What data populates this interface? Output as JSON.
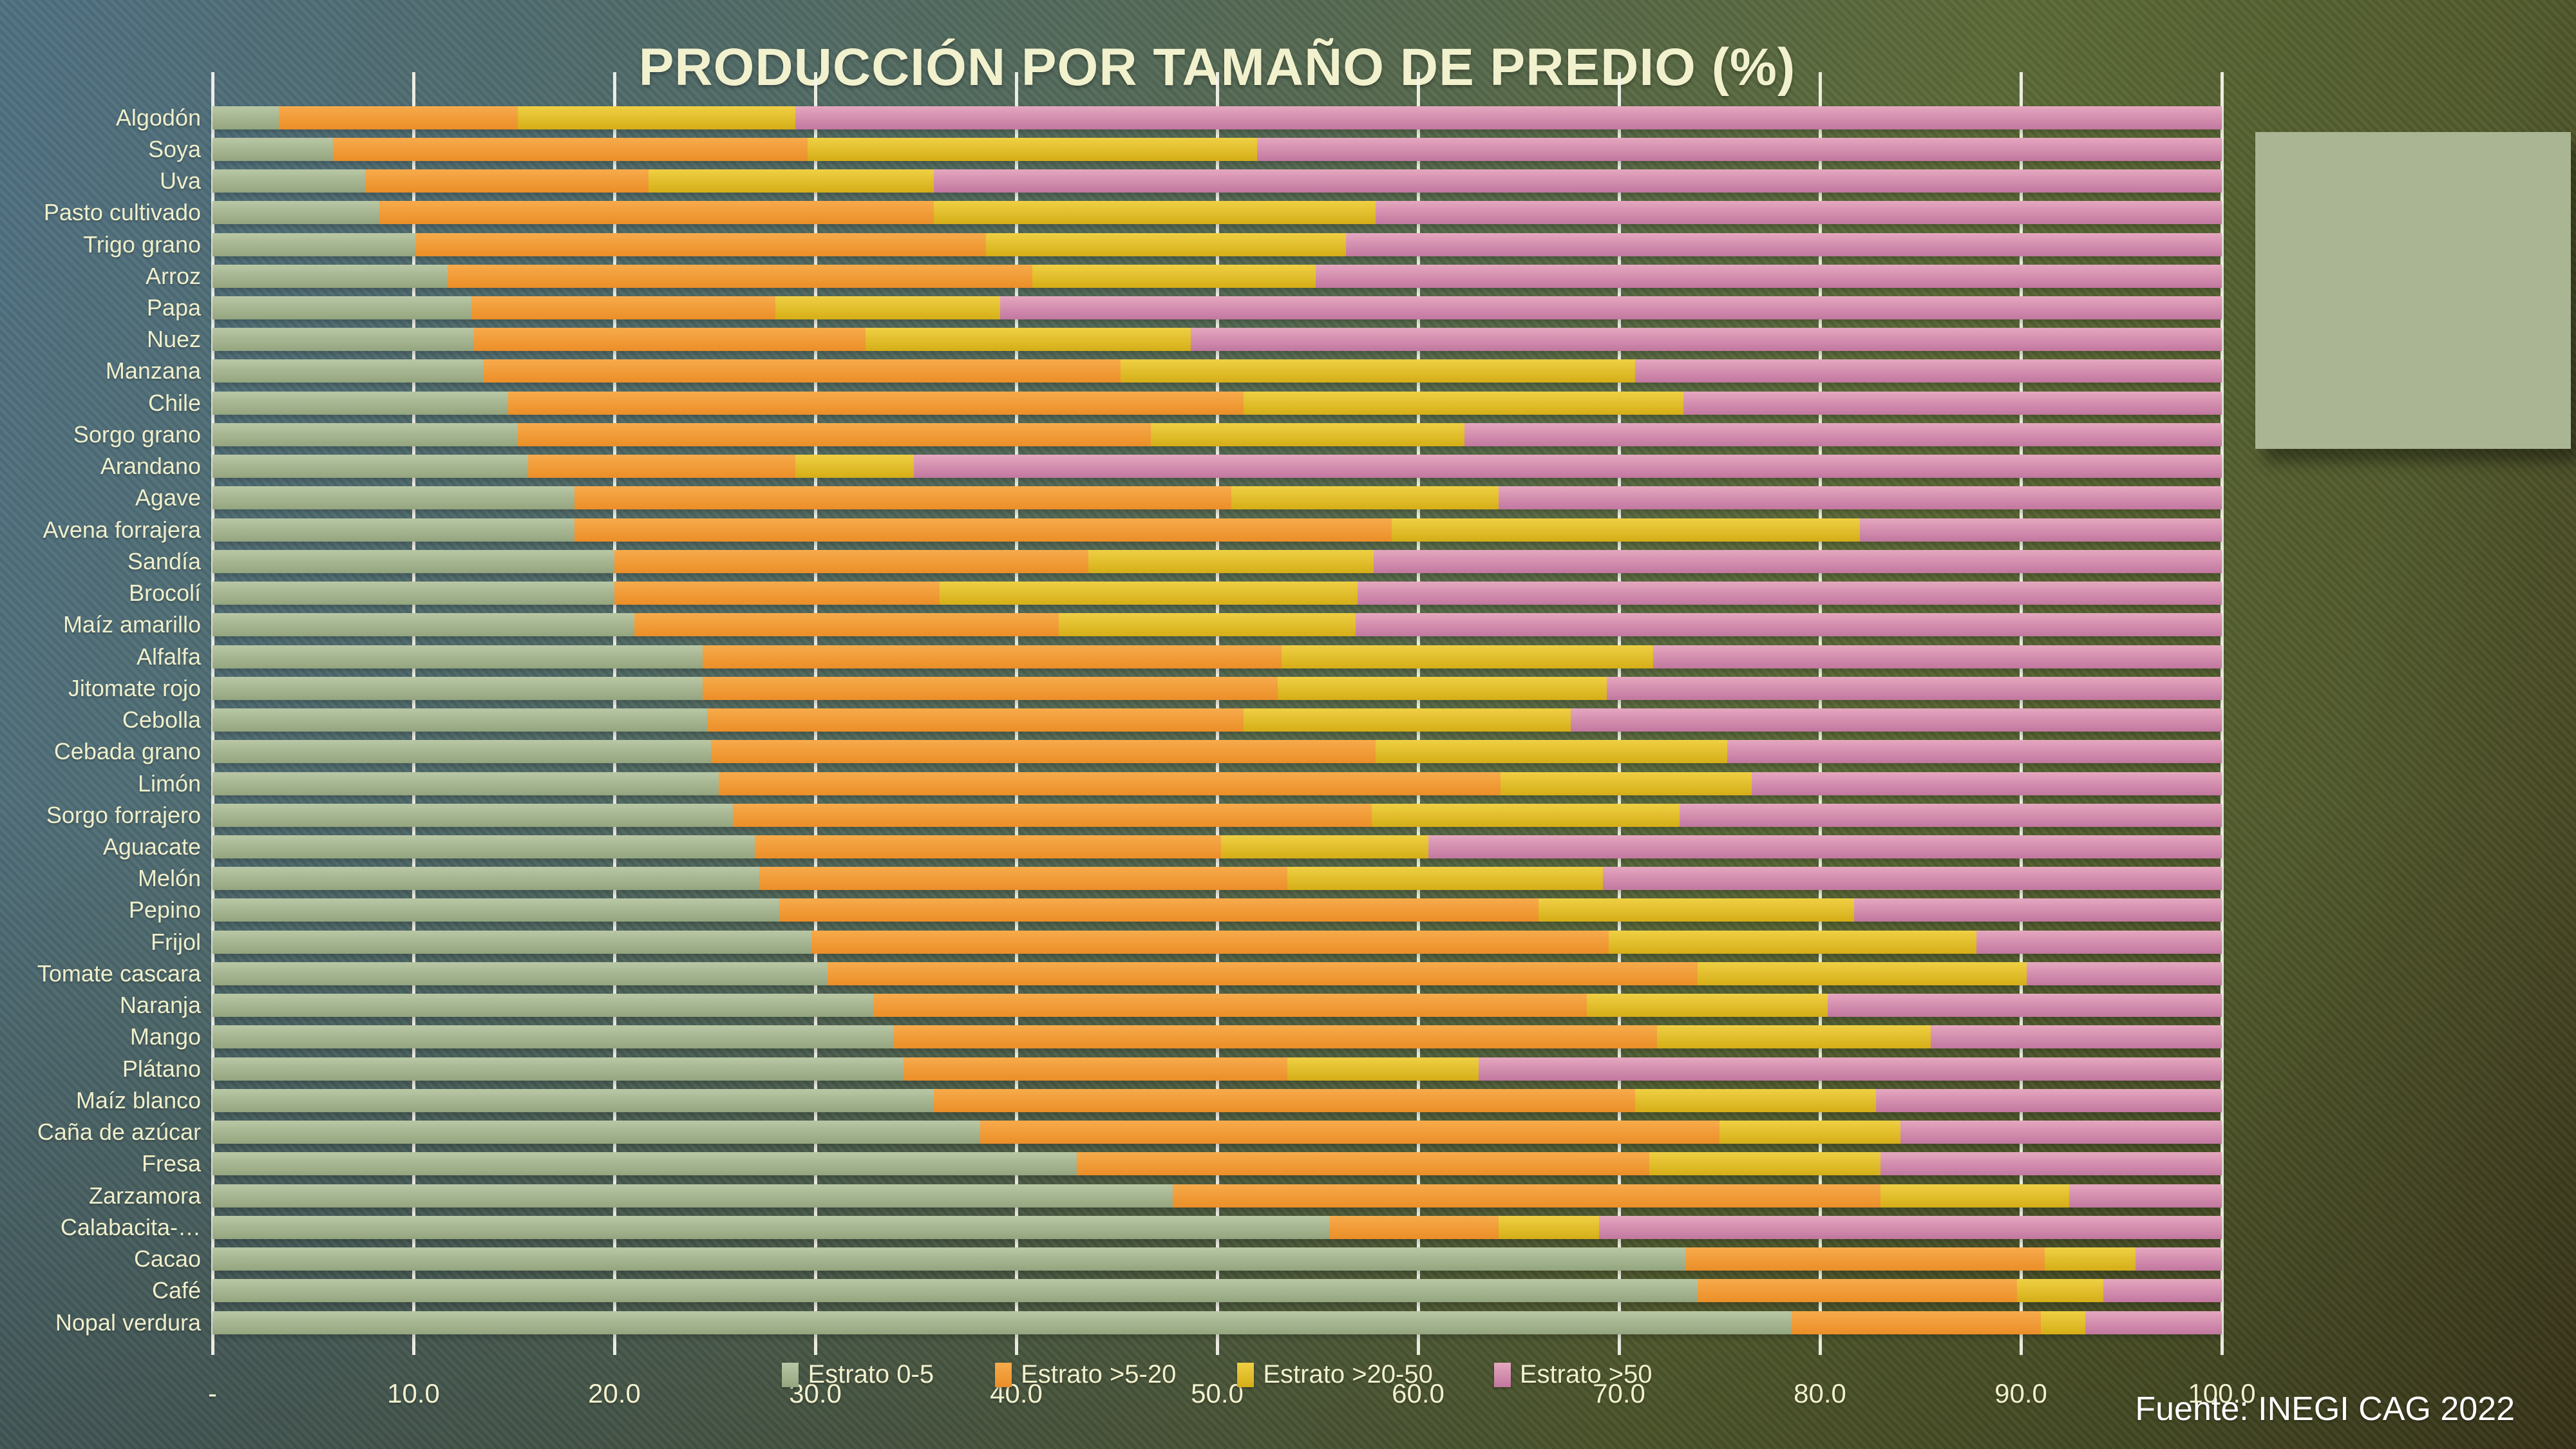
{
  "title": "PRODUCCIÓN POR TAMAÑO DE PREDIO (%)",
  "source": "Fuente: INEGI CAG 2022",
  "side_panel": {
    "present": true,
    "color": "#A9B593"
  },
  "colors": {
    "background_top_left": "#4E6F80",
    "background_bottom_right": "#403C1E",
    "gridline": "#F4F3EA",
    "title_text": "#F2F1CE",
    "axis_text": "#F2F1CE",
    "category_text": "#EFEFCB",
    "source_text": "#FFFFFF"
  },
  "x_axis": {
    "min": 0,
    "max": 100,
    "tick_step": 10,
    "tick_labels": [
      "-",
      "10.0",
      "20.0",
      "30.0",
      "40.0",
      "50.0",
      "60.0",
      "70.0",
      "80.0",
      "90.0",
      "100.0"
    ]
  },
  "chart_data": {
    "type": "bar",
    "orientation": "horizontal",
    "stacked": true,
    "title": "PRODUCCIÓN POR TAMAÑO DE PREDIO (%)",
    "xlabel": "",
    "ylabel": "",
    "xlim": [
      0,
      100
    ],
    "grid": true,
    "legend_position": "bottom",
    "categories": [
      "Algodón",
      "Soya",
      "Uva",
      "Pasto cultivado",
      "Trigo grano",
      "Arroz",
      "Papa",
      "Nuez",
      "Manzana",
      "Chile",
      "Sorgo grano",
      "Arandano",
      "Agave",
      "Avena forrajera",
      "Sandía",
      "Brocolí",
      "Maíz amarillo",
      "Alfalfa",
      "Jitomate rojo",
      "Cebolla",
      "Cebada grano",
      "Limón",
      "Sorgo forrajero",
      "Aguacate",
      "Melón",
      "Pepino",
      "Frijol",
      "Tomate cascara",
      "Naranja",
      "Mango",
      "Plátano",
      "Maíz blanco",
      "Caña de azúcar",
      "Fresa",
      "Zarzamora",
      "Calabacita-…",
      "Cacao",
      "Café",
      "Nopal verdura"
    ],
    "series": [
      {
        "name": "Estrato 0-5",
        "color": "#A6B791",
        "color_top": "#B9C7A5",
        "color_bottom": "#93A57E",
        "values": [
          3.3,
          6.0,
          7.6,
          8.3,
          10.1,
          11.7,
          12.9,
          13.0,
          13.5,
          14.7,
          15.2,
          15.7,
          18.0,
          18.0,
          20.0,
          20.0,
          21.0,
          24.4,
          24.4,
          24.6,
          24.8,
          25.2,
          25.9,
          27.0,
          27.2,
          28.2,
          29.8,
          30.6,
          32.9,
          33.9,
          34.4,
          35.9,
          38.2,
          43.0,
          47.8,
          55.6,
          73.3,
          73.9,
          78.6
        ]
      },
      {
        "name": "Estrato >5-20",
        "color": "#F09A37",
        "color_top": "#F7AB4C",
        "color_bottom": "#EB8E28",
        "values": [
          11.9,
          23.6,
          14.1,
          27.6,
          28.4,
          29.1,
          15.1,
          19.5,
          31.7,
          36.6,
          31.5,
          13.3,
          32.7,
          40.7,
          23.6,
          16.2,
          21.1,
          28.8,
          28.6,
          26.7,
          33.1,
          38.9,
          31.8,
          23.2,
          26.3,
          37.8,
          39.7,
          43.3,
          35.5,
          38.0,
          19.1,
          34.9,
          36.8,
          28.5,
          35.2,
          8.4,
          17.9,
          15.9,
          12.4
        ]
      },
      {
        "name": "Estrato >20-50",
        "color": "#E2C02C",
        "color_top": "#EFD044",
        "color_bottom": "#D5AE17",
        "values": [
          13.8,
          22.4,
          14.2,
          22.0,
          17.9,
          14.1,
          11.2,
          16.2,
          25.6,
          21.9,
          15.6,
          5.9,
          13.3,
          23.3,
          14.2,
          20.8,
          14.8,
          18.5,
          16.4,
          16.3,
          17.5,
          12.5,
          15.3,
          10.3,
          15.7,
          15.7,
          18.3,
          16.4,
          12.0,
          13.6,
          9.5,
          12.0,
          9.0,
          11.5,
          9.4,
          5.0,
          4.5,
          4.3,
          2.2
        ]
      },
      {
        "name": "Estrato >50",
        "color": "#D08FAC",
        "color_top": "#E5A7BF",
        "color_bottom": "#C2779F",
        "values": [
          71.0,
          48.0,
          64.1,
          42.1,
          43.6,
          45.1,
          60.8,
          51.3,
          29.2,
          26.8,
          37.7,
          65.1,
          36.0,
          18.0,
          42.2,
          43.0,
          43.1,
          28.3,
          30.6,
          32.4,
          24.6,
          23.4,
          27.0,
          39.5,
          30.8,
          18.3,
          12.2,
          9.7,
          19.6,
          14.5,
          37.0,
          17.2,
          16.0,
          17.0,
          7.6,
          31.0,
          4.3,
          5.9,
          6.8
        ]
      }
    ]
  }
}
